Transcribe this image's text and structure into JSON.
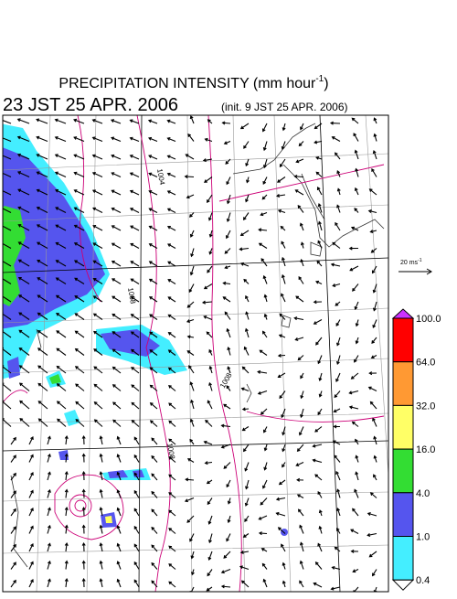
{
  "header": {
    "title_main": "PRECIPITATION INTENSITY (mm hour",
    "title_sup": "-1",
    "title_end": ")",
    "valid_time": "23 JST 25 APR. 2006",
    "init_time": "(init. 9 JST 25 APR. 2006)"
  },
  "vector_legend": {
    "label_main": "20 ms",
    "label_sup": "-1"
  },
  "colorbar": {
    "labels": [
      "100.0",
      "64.0",
      "32.0",
      "16.0",
      "4.0",
      "1.0",
      "0.4"
    ],
    "colors": [
      "#ff0000",
      "#ff9933",
      "#ffff66",
      "#33dd33",
      "#5555ee",
      "#44eeff"
    ],
    "over_color": "#cc33ff",
    "under_color": "#ffffff"
  },
  "contour_labels": [
    "1004",
    "1008",
    "1008",
    "1008"
  ]
}
